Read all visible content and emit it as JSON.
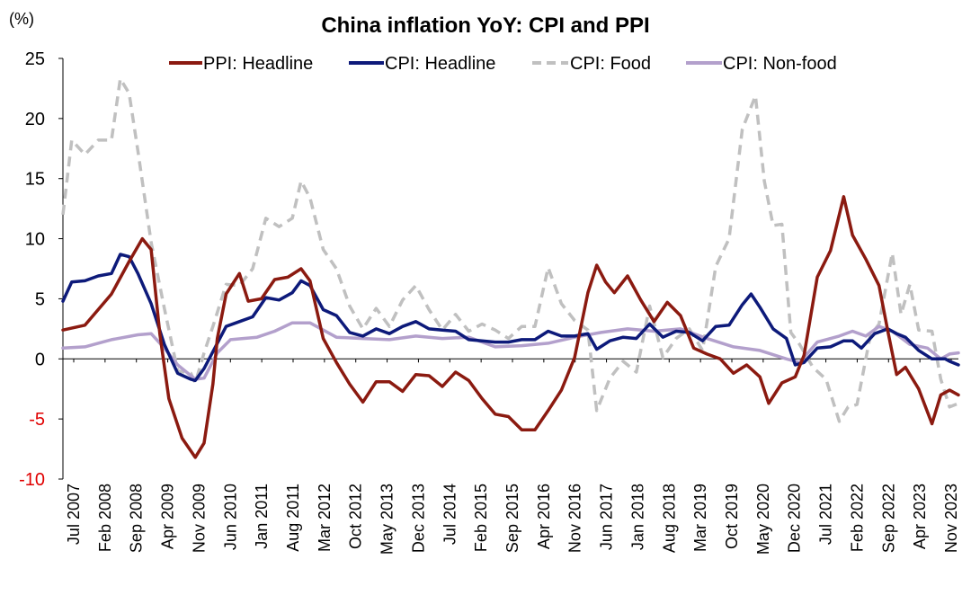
{
  "chart_data": {
    "type": "line",
    "title": "China inflation YoY: CPI and PPI",
    "unit_label": "(%)",
    "ylim": [
      -10,
      25
    ],
    "yticks": [
      "25",
      "20",
      "15",
      "10",
      "5",
      "0",
      "-5",
      "-10"
    ],
    "x_tick_labels": [
      "Jul 2007",
      "Feb 2008",
      "Sep 2008",
      "Apr 2009",
      "Nov 2009",
      "Jun 2010",
      "Jan 2011",
      "Aug 2011",
      "Mar 2012",
      "Oct 2012",
      "May 2013",
      "Dec 2013",
      "Jul 2014",
      "Feb 2015",
      "Sep 2015",
      "Apr 2016",
      "Nov 2016",
      "Jun 2017",
      "Jan 2018",
      "Aug 2018",
      "Mar 2019",
      "Oct 2019",
      "May 2020",
      "Dec 2020",
      "Jul 2021",
      "Feb 2022",
      "Sep 2022",
      "Apr 2023",
      "Nov 2023"
    ],
    "x_range": [
      "2007-01",
      "2023-12"
    ],
    "grid": false,
    "legend_position": "top",
    "series": [
      {
        "name": "PPI: Headline",
        "color": "#8b1a10",
        "style": "solid",
        "points": [
          [
            "2007-01",
            2.4
          ],
          [
            "2007-06",
            2.8
          ],
          [
            "2007-12",
            5.4
          ],
          [
            "2008-04",
            8.1
          ],
          [
            "2008-07",
            10.0
          ],
          [
            "2008-09",
            9.1
          ],
          [
            "2008-11",
            2.0
          ],
          [
            "2009-01",
            -3.3
          ],
          [
            "2009-04",
            -6.6
          ],
          [
            "2009-07",
            -8.2
          ],
          [
            "2009-09",
            -7.0
          ],
          [
            "2009-11",
            -2.1
          ],
          [
            "2009-12",
            1.7
          ],
          [
            "2010-02",
            5.4
          ],
          [
            "2010-05",
            7.1
          ],
          [
            "2010-07",
            4.8
          ],
          [
            "2010-10",
            5.0
          ],
          [
            "2011-01",
            6.6
          ],
          [
            "2011-04",
            6.8
          ],
          [
            "2011-07",
            7.5
          ],
          [
            "2011-09",
            6.5
          ],
          [
            "2011-12",
            1.7
          ],
          [
            "2012-03",
            -0.3
          ],
          [
            "2012-06",
            -2.1
          ],
          [
            "2012-09",
            -3.6
          ],
          [
            "2012-12",
            -1.9
          ],
          [
            "2013-03",
            -1.9
          ],
          [
            "2013-06",
            -2.7
          ],
          [
            "2013-09",
            -1.3
          ],
          [
            "2013-12",
            -1.4
          ],
          [
            "2014-03",
            -2.3
          ],
          [
            "2014-06",
            -1.1
          ],
          [
            "2014-09",
            -1.8
          ],
          [
            "2014-12",
            -3.3
          ],
          [
            "2015-03",
            -4.6
          ],
          [
            "2015-06",
            -4.8
          ],
          [
            "2015-09",
            -5.9
          ],
          [
            "2015-12",
            -5.9
          ],
          [
            "2016-03",
            -4.3
          ],
          [
            "2016-06",
            -2.6
          ],
          [
            "2016-09",
            0.1
          ],
          [
            "2016-12",
            5.5
          ],
          [
            "2017-02",
            7.8
          ],
          [
            "2017-04",
            6.4
          ],
          [
            "2017-06",
            5.5
          ],
          [
            "2017-09",
            6.9
          ],
          [
            "2017-12",
            4.9
          ],
          [
            "2018-03",
            3.1
          ],
          [
            "2018-06",
            4.7
          ],
          [
            "2018-09",
            3.6
          ],
          [
            "2018-12",
            0.9
          ],
          [
            "2019-03",
            0.4
          ],
          [
            "2019-06",
            0.0
          ],
          [
            "2019-09",
            -1.2
          ],
          [
            "2019-12",
            -0.5
          ],
          [
            "2020-03",
            -1.5
          ],
          [
            "2020-05",
            -3.7
          ],
          [
            "2020-08",
            -2.0
          ],
          [
            "2020-11",
            -1.5
          ],
          [
            "2021-01",
            0.3
          ],
          [
            "2021-04",
            6.8
          ],
          [
            "2021-07",
            9.0
          ],
          [
            "2021-10",
            13.5
          ],
          [
            "2021-12",
            10.3
          ],
          [
            "2022-03",
            8.3
          ],
          [
            "2022-06",
            6.1
          ],
          [
            "2022-08",
            2.3
          ],
          [
            "2022-10",
            -1.3
          ],
          [
            "2022-12",
            -0.7
          ],
          [
            "2023-03",
            -2.5
          ],
          [
            "2023-06",
            -5.4
          ],
          [
            "2023-08",
            -3.0
          ],
          [
            "2023-10",
            -2.6
          ],
          [
            "2023-12",
            -3.0
          ]
        ]
      },
      {
        "name": "CPI: Headline",
        "color": "#0d1a7a",
        "style": "solid",
        "points": [
          [
            "2007-01",
            4.8
          ],
          [
            "2007-03",
            6.4
          ],
          [
            "2007-06",
            6.5
          ],
          [
            "2007-09",
            6.9
          ],
          [
            "2007-12",
            7.1
          ],
          [
            "2008-02",
            8.7
          ],
          [
            "2008-04",
            8.5
          ],
          [
            "2008-06",
            7.1
          ],
          [
            "2008-09",
            4.6
          ],
          [
            "2008-12",
            1.2
          ],
          [
            "2009-03",
            -1.2
          ],
          [
            "2009-06",
            -1.7
          ],
          [
            "2009-07",
            -1.8
          ],
          [
            "2009-09",
            -0.8
          ],
          [
            "2009-11",
            0.6
          ],
          [
            "2010-02",
            2.7
          ],
          [
            "2010-05",
            3.1
          ],
          [
            "2010-08",
            3.5
          ],
          [
            "2010-11",
            5.1
          ],
          [
            "2011-02",
            4.9
          ],
          [
            "2011-05",
            5.5
          ],
          [
            "2011-07",
            6.5
          ],
          [
            "2011-09",
            6.1
          ],
          [
            "2011-12",
            4.1
          ],
          [
            "2012-03",
            3.6
          ],
          [
            "2012-06",
            2.2
          ],
          [
            "2012-09",
            1.9
          ],
          [
            "2012-12",
            2.5
          ],
          [
            "2013-03",
            2.1
          ],
          [
            "2013-06",
            2.7
          ],
          [
            "2013-09",
            3.1
          ],
          [
            "2013-12",
            2.5
          ],
          [
            "2014-03",
            2.4
          ],
          [
            "2014-06",
            2.3
          ],
          [
            "2014-09",
            1.6
          ],
          [
            "2014-12",
            1.5
          ],
          [
            "2015-03",
            1.4
          ],
          [
            "2015-06",
            1.4
          ],
          [
            "2015-09",
            1.6
          ],
          [
            "2015-12",
            1.6
          ],
          [
            "2016-03",
            2.3
          ],
          [
            "2016-06",
            1.9
          ],
          [
            "2016-09",
            1.9
          ],
          [
            "2016-12",
            2.1
          ],
          [
            "2017-02",
            0.8
          ],
          [
            "2017-05",
            1.5
          ],
          [
            "2017-08",
            1.8
          ],
          [
            "2017-11",
            1.7
          ],
          [
            "2018-02",
            2.9
          ],
          [
            "2018-05",
            1.8
          ],
          [
            "2018-08",
            2.3
          ],
          [
            "2018-11",
            2.2
          ],
          [
            "2019-02",
            1.5
          ],
          [
            "2019-05",
            2.7
          ],
          [
            "2019-08",
            2.8
          ],
          [
            "2019-11",
            4.5
          ],
          [
            "2020-01",
            5.4
          ],
          [
            "2020-03",
            4.3
          ],
          [
            "2020-06",
            2.5
          ],
          [
            "2020-09",
            1.7
          ],
          [
            "2020-11",
            -0.5
          ],
          [
            "2021-01",
            -0.3
          ],
          [
            "2021-04",
            0.9
          ],
          [
            "2021-07",
            1.0
          ],
          [
            "2021-10",
            1.5
          ],
          [
            "2021-12",
            1.5
          ],
          [
            "2022-02",
            0.9
          ],
          [
            "2022-05",
            2.1
          ],
          [
            "2022-08",
            2.5
          ],
          [
            "2022-10",
            2.1
          ],
          [
            "2022-12",
            1.8
          ],
          [
            "2023-03",
            0.7
          ],
          [
            "2023-06",
            0.0
          ],
          [
            "2023-09",
            0.0
          ],
          [
            "2023-10",
            -0.2
          ],
          [
            "2023-12",
            -0.5
          ]
        ]
      },
      {
        "name": "CPI: Food",
        "color": "#c0c0c0",
        "style": "dashed",
        "points": [
          [
            "2007-01",
            12.0
          ],
          [
            "2007-03",
            18.2
          ],
          [
            "2007-06",
            17.0
          ],
          [
            "2007-09",
            18.2
          ],
          [
            "2007-12",
            18.2
          ],
          [
            "2008-02",
            23.3
          ],
          [
            "2008-04",
            22.1
          ],
          [
            "2008-06",
            17.3
          ],
          [
            "2008-09",
            9.7
          ],
          [
            "2008-12",
            4.2
          ],
          [
            "2009-03",
            -1.0
          ],
          [
            "2009-06",
            -1.2
          ],
          [
            "2009-07",
            -2.0
          ],
          [
            "2009-09",
            0.5
          ],
          [
            "2009-11",
            2.7
          ],
          [
            "2010-02",
            6.2
          ],
          [
            "2010-05",
            6.1
          ],
          [
            "2010-08",
            7.5
          ],
          [
            "2010-11",
            11.7
          ],
          [
            "2011-02",
            11.0
          ],
          [
            "2011-05",
            11.7
          ],
          [
            "2011-07",
            14.8
          ],
          [
            "2011-09",
            13.4
          ],
          [
            "2011-12",
            9.1
          ],
          [
            "2012-03",
            7.5
          ],
          [
            "2012-06",
            4.4
          ],
          [
            "2012-09",
            2.5
          ],
          [
            "2012-12",
            4.2
          ],
          [
            "2013-03",
            2.7
          ],
          [
            "2013-06",
            4.9
          ],
          [
            "2013-09",
            6.1
          ],
          [
            "2013-12",
            4.1
          ],
          [
            "2014-03",
            2.4
          ],
          [
            "2014-06",
            3.7
          ],
          [
            "2014-09",
            2.3
          ],
          [
            "2014-12",
            2.9
          ],
          [
            "2015-03",
            2.4
          ],
          [
            "2015-06",
            1.7
          ],
          [
            "2015-09",
            2.7
          ],
          [
            "2015-12",
            2.7
          ],
          [
            "2016-03",
            7.6
          ],
          [
            "2016-06",
            4.6
          ],
          [
            "2016-09",
            3.2
          ],
          [
            "2016-12",
            2.4
          ],
          [
            "2017-02",
            -4.3
          ],
          [
            "2017-05",
            -1.6
          ],
          [
            "2017-08",
            -0.2
          ],
          [
            "2017-11",
            -1.1
          ],
          [
            "2018-02",
            4.4
          ],
          [
            "2018-05",
            0.1
          ],
          [
            "2018-08",
            1.7
          ],
          [
            "2018-11",
            2.5
          ],
          [
            "2019-02",
            0.7
          ],
          [
            "2019-05",
            7.7
          ],
          [
            "2019-08",
            10.0
          ],
          [
            "2019-11",
            19.1
          ],
          [
            "2020-02",
            21.9
          ],
          [
            "2020-04",
            14.8
          ],
          [
            "2020-06",
            11.1
          ],
          [
            "2020-08",
            11.2
          ],
          [
            "2020-10",
            2.2
          ],
          [
            "2020-12",
            1.2
          ],
          [
            "2021-03",
            -0.7
          ],
          [
            "2021-06",
            -1.7
          ],
          [
            "2021-09",
            -5.2
          ],
          [
            "2021-11",
            -4.0
          ],
          [
            "2022-01",
            -3.8
          ],
          [
            "2022-04",
            1.9
          ],
          [
            "2022-06",
            2.9
          ],
          [
            "2022-09",
            8.8
          ],
          [
            "2022-11",
            3.7
          ],
          [
            "2023-01",
            6.2
          ],
          [
            "2023-03",
            2.4
          ],
          [
            "2023-06",
            2.3
          ],
          [
            "2023-08",
            -1.7
          ],
          [
            "2023-10",
            -4.0
          ],
          [
            "2023-12",
            -3.7
          ]
        ]
      },
      {
        "name": "CPI: Non-food",
        "color": "#b3a0cc",
        "style": "solid",
        "points": [
          [
            "2007-01",
            0.9
          ],
          [
            "2007-06",
            1.0
          ],
          [
            "2007-12",
            1.6
          ],
          [
            "2008-06",
            2.0
          ],
          [
            "2008-09",
            2.1
          ],
          [
            "2008-12",
            0.9
          ],
          [
            "2009-03",
            -0.5
          ],
          [
            "2009-07",
            -1.7
          ],
          [
            "2009-09",
            -1.6
          ],
          [
            "2009-12",
            0.5
          ],
          [
            "2010-03",
            1.6
          ],
          [
            "2010-09",
            1.8
          ],
          [
            "2011-01",
            2.3
          ],
          [
            "2011-05",
            3.0
          ],
          [
            "2011-09",
            3.0
          ],
          [
            "2012-03",
            1.8
          ],
          [
            "2012-09",
            1.7
          ],
          [
            "2013-03",
            1.6
          ],
          [
            "2013-09",
            1.9
          ],
          [
            "2014-03",
            1.7
          ],
          [
            "2014-09",
            1.8
          ],
          [
            "2015-03",
            1.0
          ],
          [
            "2015-09",
            1.1
          ],
          [
            "2016-03",
            1.3
          ],
          [
            "2016-09",
            1.8
          ],
          [
            "2017-03",
            2.2
          ],
          [
            "2017-09",
            2.5
          ],
          [
            "2018-03",
            2.3
          ],
          [
            "2018-09",
            2.5
          ],
          [
            "2019-03",
            1.7
          ],
          [
            "2019-09",
            1.0
          ],
          [
            "2020-03",
            0.7
          ],
          [
            "2020-09",
            0.0
          ],
          [
            "2020-12",
            -0.3
          ],
          [
            "2021-04",
            1.4
          ],
          [
            "2021-09",
            1.9
          ],
          [
            "2021-12",
            2.3
          ],
          [
            "2022-03",
            1.9
          ],
          [
            "2022-06",
            2.7
          ],
          [
            "2022-09",
            2.3
          ],
          [
            "2023-01",
            1.2
          ],
          [
            "2023-05",
            0.9
          ],
          [
            "2023-08",
            0.0
          ],
          [
            "2023-10",
            0.4
          ],
          [
            "2023-12",
            0.5
          ]
        ]
      }
    ]
  }
}
